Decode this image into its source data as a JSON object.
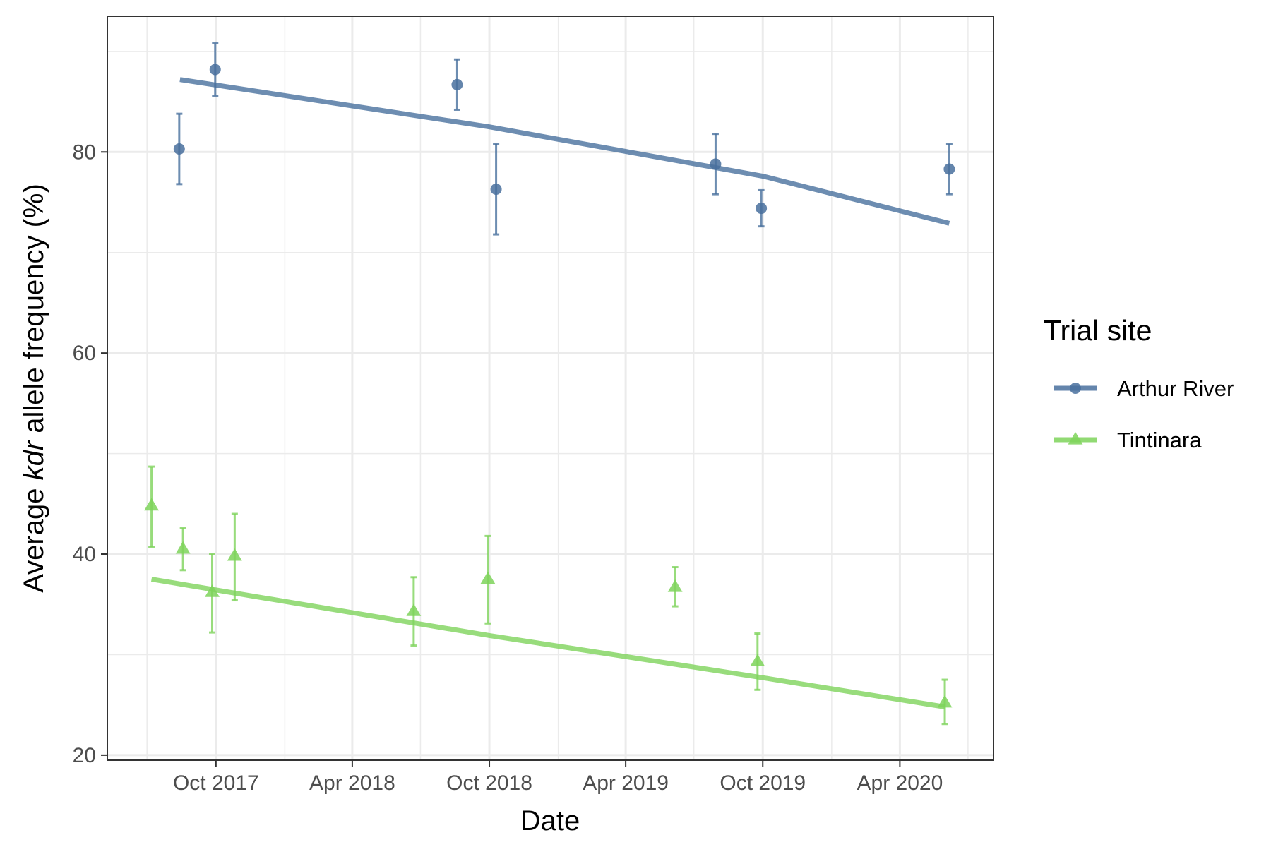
{
  "chart_data": {
    "type": "scatter",
    "xlabel": "Date",
    "ylabel_parts": [
      "Average ",
      "kdr",
      " allele frequency (%)"
    ],
    "xlim": [
      "2017-05-09",
      "2020-08-04"
    ],
    "ylim": [
      19.5,
      93.5
    ],
    "x_ticks": [
      {
        "date": "2017-10-01",
        "label": "Oct 2017"
      },
      {
        "date": "2018-04-01",
        "label": "Apr 2018"
      },
      {
        "date": "2018-10-01",
        "label": "Oct 2018"
      },
      {
        "date": "2019-04-01",
        "label": "Apr 2019"
      },
      {
        "date": "2019-10-01",
        "label": "Oct 2019"
      },
      {
        "date": "2020-04-01",
        "label": "Apr 2020"
      }
    ],
    "x_minor_ticks": [
      "2017-07-01",
      "2018-01-01",
      "2018-07-01",
      "2019-01-01",
      "2019-07-01",
      "2020-01-01",
      "2020-07-01"
    ],
    "y_ticks": [
      20,
      40,
      60,
      80
    ],
    "y_minor_ticks": [
      30,
      50,
      70,
      90
    ],
    "grid": true,
    "legend": {
      "title": "Trial site",
      "position": "right"
    },
    "series": [
      {
        "name": "Arthur River",
        "color": "#49709e",
        "marker": "circle",
        "points": [
          {
            "x": "2017-08-13",
            "y": 80.3,
            "lo": 76.8,
            "hi": 83.8
          },
          {
            "x": "2017-09-30",
            "y": 88.2,
            "lo": 85.6,
            "hi": 90.8
          },
          {
            "x": "2018-08-19",
            "y": 86.7,
            "lo": 84.2,
            "hi": 89.2
          },
          {
            "x": "2018-10-10",
            "y": 76.3,
            "lo": 71.8,
            "hi": 80.8
          },
          {
            "x": "2019-07-30",
            "y": 78.8,
            "lo": 75.8,
            "hi": 81.8
          },
          {
            "x": "2019-09-29",
            "y": 74.4,
            "lo": 72.6,
            "hi": 76.2
          },
          {
            "x": "2020-06-06",
            "y": 78.3,
            "lo": 75.8,
            "hi": 80.8
          }
        ],
        "trend": [
          {
            "x": "2017-08-14",
            "y": 87.2
          },
          {
            "x": "2018-10-01",
            "y": 82.5
          },
          {
            "x": "2019-10-01",
            "y": 77.6
          },
          {
            "x": "2020-06-06",
            "y": 72.9
          }
        ]
      },
      {
        "name": "Tintinara",
        "color": "#7ed35b",
        "marker": "triangle",
        "points": [
          {
            "x": "2017-07-07",
            "y": 44.8,
            "lo": 40.7,
            "hi": 48.7
          },
          {
            "x": "2017-08-18",
            "y": 40.5,
            "lo": 38.4,
            "hi": 42.6
          },
          {
            "x": "2017-09-26",
            "y": 36.2,
            "lo": 32.2,
            "hi": 40.0
          },
          {
            "x": "2017-10-26",
            "y": 39.8,
            "lo": 35.4,
            "hi": 44.0
          },
          {
            "x": "2018-06-22",
            "y": 34.3,
            "lo": 30.9,
            "hi": 37.7
          },
          {
            "x": "2018-09-29",
            "y": 37.5,
            "lo": 33.1,
            "hi": 41.8
          },
          {
            "x": "2019-06-06",
            "y": 36.7,
            "lo": 34.8,
            "hi": 38.7
          },
          {
            "x": "2019-09-24",
            "y": 29.3,
            "lo": 26.5,
            "hi": 32.1
          },
          {
            "x": "2020-05-31",
            "y": 25.2,
            "lo": 23.1,
            "hi": 27.5
          }
        ],
        "trend": [
          {
            "x": "2017-07-07",
            "y": 37.5
          },
          {
            "x": "2018-10-01",
            "y": 31.9
          },
          {
            "x": "2019-10-01",
            "y": 27.7
          },
          {
            "x": "2020-05-31",
            "y": 24.8
          }
        ]
      }
    ]
  }
}
